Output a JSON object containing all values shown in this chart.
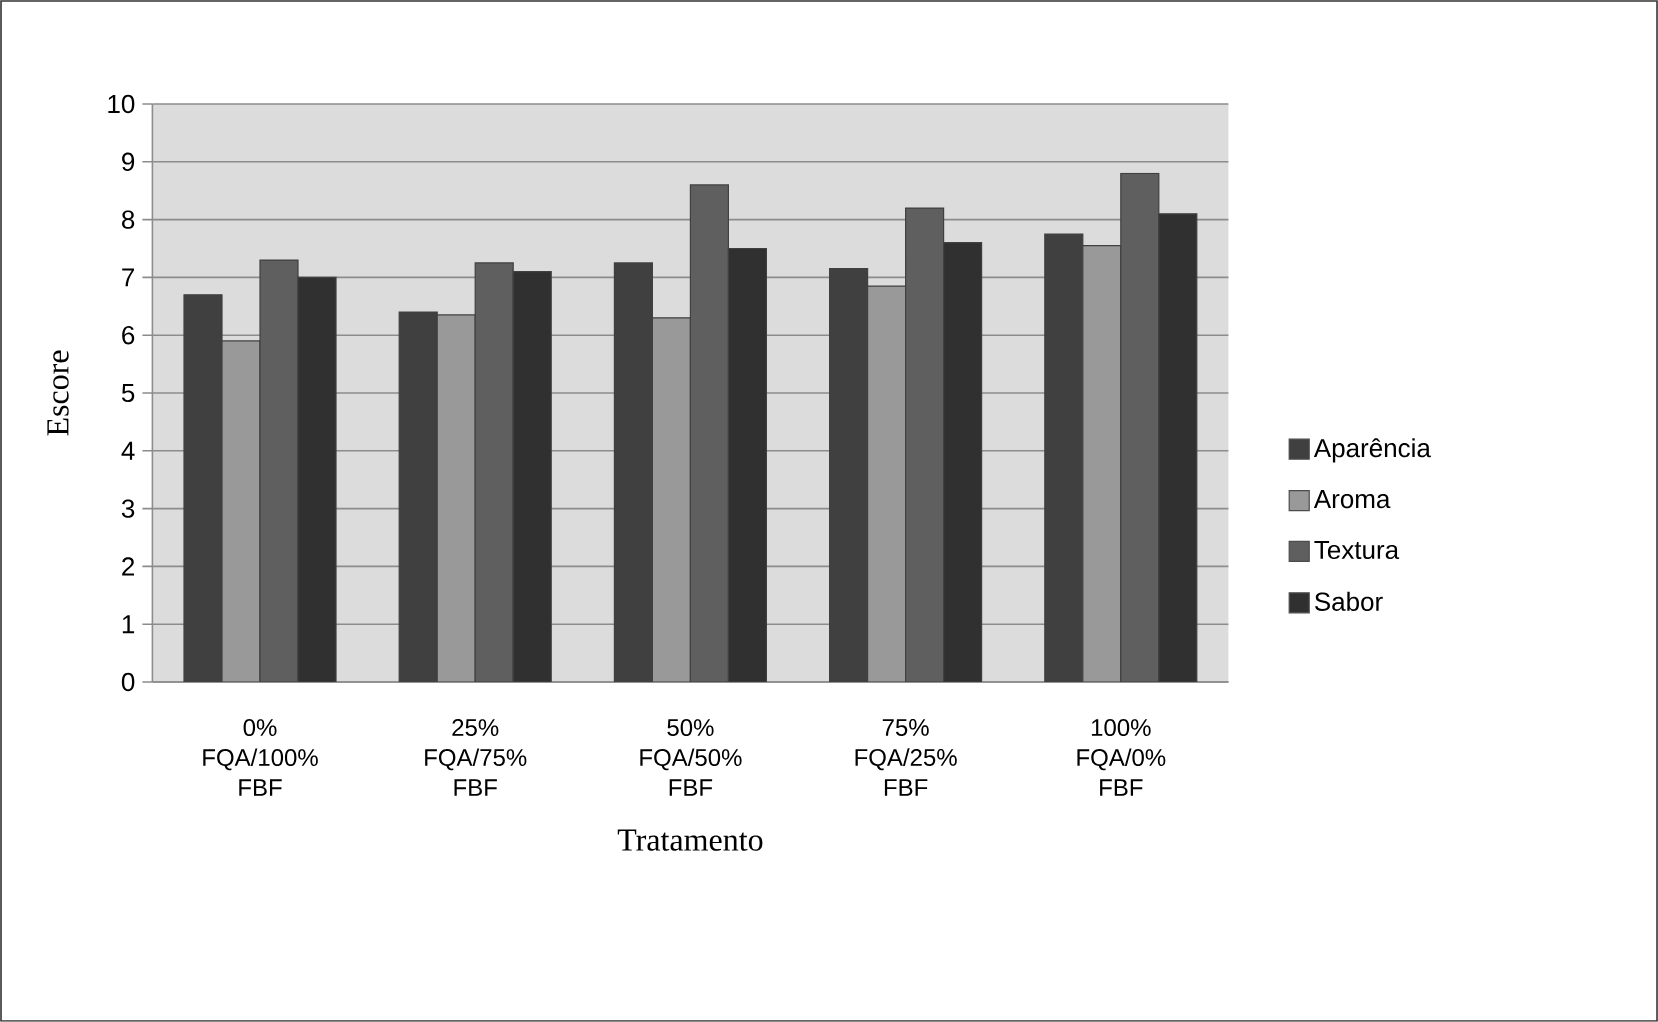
{
  "chart_data": {
    "type": "bar",
    "xlabel": "Tratamento",
    "ylabel": "Escore",
    "categories": [
      "0% FQA/100% FBF",
      "25% FQA/75% FBF",
      "50% FQA/50% FBF",
      "75% FQA/25% FBF",
      "100% FQA/0% FBF"
    ],
    "series": [
      {
        "name": "Aparência",
        "color": "#404040",
        "values": [
          6.7,
          6.4,
          7.25,
          7.15,
          7.75
        ]
      },
      {
        "name": "Aroma",
        "color": "#999999",
        "values": [
          5.9,
          6.35,
          6.3,
          6.85,
          7.55
        ]
      },
      {
        "name": "Textura",
        "color": "#5f5f5f",
        "values": [
          7.3,
          7.25,
          8.6,
          8.2,
          8.8
        ]
      },
      {
        "name": "Sabor",
        "color": "#303030",
        "values": [
          7.0,
          7.1,
          7.5,
          7.6,
          8.1
        ]
      }
    ],
    "ylim": [
      0,
      10
    ],
    "yticks": [
      0,
      1,
      2,
      3,
      4,
      5,
      6,
      7,
      8,
      9,
      10
    ],
    "grid": "y",
    "legend": "right"
  }
}
